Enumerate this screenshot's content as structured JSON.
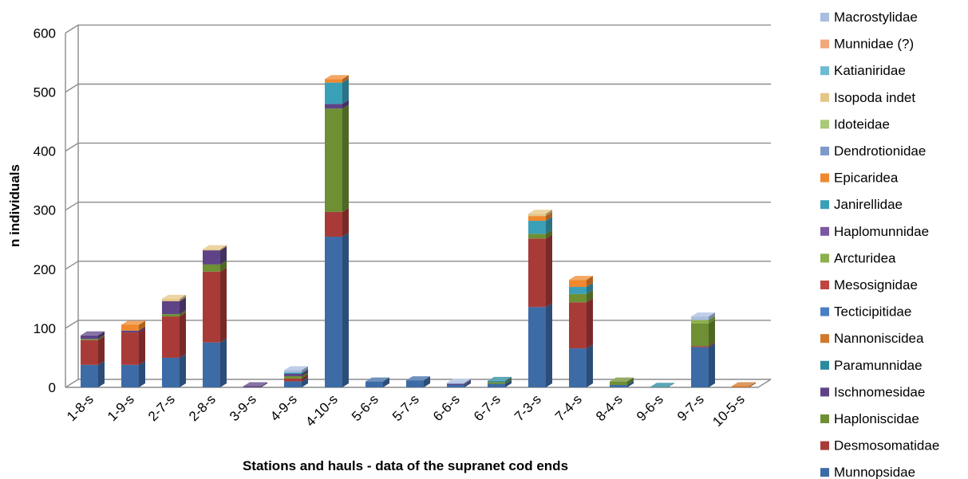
{
  "chart_data": {
    "type": "bar",
    "stacked": true,
    "title": "",
    "xlabel": "Stations and hauls - data of the supranet cod ends",
    "ylabel": "n individuals",
    "ylim": [
      0,
      600
    ],
    "yticks": [
      0,
      100,
      200,
      300,
      400,
      500,
      600
    ],
    "grid": true,
    "legend_position": "right",
    "categories": [
      "1-8-s",
      "1-9-s",
      "2-7-s",
      "2-8-s",
      "3-9-s",
      "4-9-s",
      "4-10-s",
      "5-6-s",
      "5-7-s",
      "6-6-s",
      "6-7-s",
      "7-3-s",
      "7-4-s",
      "8-4-s",
      "9-6-s",
      "9-7-s",
      "10-5-s"
    ],
    "series": [
      {
        "name": "Munnopsidae",
        "color": "#3D6BA6",
        "values": [
          38,
          38,
          50,
          76,
          0,
          10,
          255,
          10,
          12,
          4,
          6,
          136,
          66,
          4,
          0,
          68,
          0
        ]
      },
      {
        "name": "Desmosomatidae",
        "color": "#A83B38",
        "values": [
          42,
          55,
          70,
          120,
          0,
          5,
          42,
          0,
          0,
          0,
          0,
          116,
          78,
          0,
          0,
          2,
          0
        ]
      },
      {
        "name": "Haploniscidae",
        "color": "#6E8F34",
        "values": [
          2,
          0,
          4,
          12,
          0,
          4,
          175,
          0,
          0,
          0,
          3,
          8,
          14,
          6,
          0,
          38,
          0
        ]
      },
      {
        "name": "Ischnomesidae",
        "color": "#5E4386",
        "values": [
          6,
          3,
          22,
          24,
          2,
          4,
          8,
          0,
          0,
          2,
          0,
          0,
          0,
          0,
          0,
          0,
          0
        ]
      },
      {
        "name": "Paramunnidae",
        "color": "#2A8A9E",
        "values": [
          0,
          0,
          0,
          0,
          0,
          0,
          0,
          0,
          0,
          0,
          2,
          0,
          0,
          0,
          1,
          0,
          0
        ]
      },
      {
        "name": "Nannoniscidea",
        "color": "#D3772B",
        "values": [
          0,
          0,
          0,
          0,
          0,
          0,
          0,
          0,
          0,
          0,
          0,
          0,
          0,
          0,
          0,
          0,
          2
        ]
      },
      {
        "name": "Tecticipitidae",
        "color": "#4A7EC4",
        "values": [
          0,
          0,
          0,
          0,
          0,
          0,
          0,
          0,
          0,
          0,
          0,
          0,
          0,
          0,
          0,
          0,
          0
        ]
      },
      {
        "name": "Mesosignidae",
        "color": "#C04540",
        "values": [
          0,
          0,
          0,
          0,
          0,
          0,
          0,
          0,
          0,
          0,
          0,
          0,
          0,
          0,
          0,
          0,
          0
        ]
      },
      {
        "name": "Arcturidea",
        "color": "#8CB04A",
        "values": [
          0,
          0,
          0,
          0,
          0,
          0,
          0,
          0,
          0,
          0,
          0,
          0,
          0,
          0,
          0,
          6,
          0
        ]
      },
      {
        "name": "Haplomunnidae",
        "color": "#7B58A2",
        "values": [
          0,
          0,
          0,
          0,
          0,
          0,
          0,
          0,
          0,
          0,
          0,
          0,
          0,
          0,
          0,
          0,
          0
        ]
      },
      {
        "name": "Janirellidae",
        "color": "#3AA0B8",
        "values": [
          0,
          0,
          0,
          0,
          0,
          2,
          36,
          0,
          0,
          0,
          0,
          22,
          12,
          0,
          0,
          0,
          0
        ]
      },
      {
        "name": "Epicaridea",
        "color": "#F0882E",
        "values": [
          0,
          10,
          0,
          0,
          0,
          0,
          6,
          0,
          0,
          0,
          0,
          8,
          12,
          0,
          0,
          0,
          0
        ]
      },
      {
        "name": "Dendrotionidae",
        "color": "#7E9ACB",
        "values": [
          0,
          0,
          0,
          0,
          0,
          0,
          0,
          0,
          0,
          0,
          0,
          0,
          0,
          0,
          0,
          0,
          0
        ]
      },
      {
        "name": "Idoteidae",
        "color": "#A9C97A",
        "values": [
          0,
          0,
          0,
          0,
          0,
          0,
          0,
          0,
          0,
          0,
          0,
          0,
          0,
          0,
          0,
          0,
          0
        ]
      },
      {
        "name": "Isopoda indet",
        "color": "#E5C686",
        "values": [
          0,
          0,
          4,
          2,
          0,
          0,
          0,
          0,
          0,
          0,
          0,
          4,
          0,
          0,
          0,
          0,
          0
        ]
      },
      {
        "name": "Katianiridae",
        "color": "#6FBBD0",
        "values": [
          0,
          0,
          0,
          0,
          0,
          0,
          0,
          0,
          0,
          0,
          0,
          0,
          0,
          0,
          0,
          0,
          0
        ]
      },
      {
        "name": "Munnidae (?)",
        "color": "#F2A77C",
        "values": [
          0,
          0,
          0,
          0,
          0,
          0,
          0,
          0,
          0,
          0,
          0,
          0,
          0,
          0,
          0,
          0,
          0
        ]
      },
      {
        "name": "Macrostylidae",
        "color": "#A9BDE0",
        "values": [
          0,
          0,
          0,
          0,
          0,
          4,
          0,
          0,
          0,
          2,
          0,
          0,
          0,
          0,
          0,
          6,
          0
        ]
      }
    ]
  }
}
